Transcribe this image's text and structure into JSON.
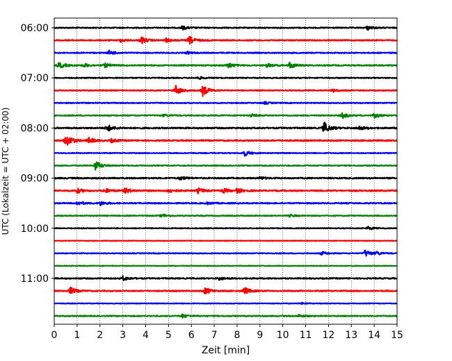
{
  "chart_data": {
    "type": "line",
    "title": "",
    "xlabel": "Zeit  [min]",
    "ylabel": "UTC (Lokalzeit = UTC + 02:00)",
    "xlim": [
      0,
      15
    ],
    "x_ticks": [
      "0",
      "1",
      "2",
      "3",
      "4",
      "5",
      "6",
      "7",
      "8",
      "9",
      "10",
      "11",
      "12",
      "13",
      "14",
      "15"
    ],
    "y_ticks": [
      "06:00",
      "07:00",
      "08:00",
      "09:00",
      "10:00",
      "11:00"
    ],
    "grid": "vertical-dotted",
    "trace_colors": [
      "#000000",
      "#ff0000",
      "#0000ff",
      "#008000"
    ],
    "traces": [
      {
        "start": "06:00",
        "color": "#000000",
        "noise": 0.22,
        "events": [
          [
            5.6,
            0.8
          ],
          [
            13.7,
            1.0
          ]
        ]
      },
      {
        "start": "06:15",
        "color": "#ff0000",
        "noise": 0.25,
        "events": [
          [
            2.9,
            0.7
          ],
          [
            3.8,
            1.6
          ],
          [
            5.9,
            1.8
          ],
          [
            4.9,
            0.8
          ]
        ]
      },
      {
        "start": "06:30",
        "color": "#0000ff",
        "noise": 0.22,
        "events": [
          [
            2.4,
            1.0
          ],
          [
            5.8,
            0.5
          ]
        ]
      },
      {
        "start": "06:45",
        "color": "#008000",
        "noise": 0.25,
        "events": [
          [
            0.2,
            1.4
          ],
          [
            1.3,
            0.8
          ],
          [
            2.2,
            0.9
          ],
          [
            7.6,
            1.2
          ],
          [
            9.3,
            0.8
          ],
          [
            10.3,
            1.4
          ]
        ]
      },
      {
        "start": "07:00",
        "color": "#000000",
        "noise": 0.2,
        "events": [
          [
            6.3,
            0.6
          ]
        ]
      },
      {
        "start": "07:15",
        "color": "#ff0000",
        "noise": 0.22,
        "events": [
          [
            5.3,
            2.2
          ],
          [
            6.5,
            2.4
          ],
          [
            12.2,
            0.7
          ]
        ]
      },
      {
        "start": "07:30",
        "color": "#0000ff",
        "noise": 0.2,
        "events": [
          [
            9.2,
            0.5
          ]
        ]
      },
      {
        "start": "07:45",
        "color": "#008000",
        "noise": 0.22,
        "events": [
          [
            4.8,
            0.6
          ],
          [
            8.6,
            0.7
          ],
          [
            12.6,
            1.2
          ],
          [
            14.0,
            1.1
          ]
        ]
      },
      {
        "start": "08:00",
        "color": "#000000",
        "noise": 0.3,
        "events": [
          [
            2.3,
            1.6
          ],
          [
            11.8,
            2.6
          ],
          [
            13.3,
            0.9
          ]
        ]
      },
      {
        "start": "08:15",
        "color": "#ff0000",
        "noise": 0.3,
        "events": [
          [
            0.5,
            3.2
          ],
          [
            1.5,
            1.2
          ],
          [
            2.5,
            0.7
          ]
        ]
      },
      {
        "start": "08:30",
        "color": "#0000ff",
        "noise": 0.18,
        "events": [
          [
            8.3,
            1.4
          ]
        ]
      },
      {
        "start": "08:45",
        "color": "#008000",
        "noise": 0.2,
        "events": [
          [
            1.8,
            2.2
          ]
        ]
      },
      {
        "start": "09:00",
        "color": "#000000",
        "noise": 0.28,
        "events": [
          [
            5.5,
            0.8
          ],
          [
            9.0,
            0.6
          ]
        ]
      },
      {
        "start": "09:15",
        "color": "#ff0000",
        "noise": 0.3,
        "events": [
          [
            1.0,
            1.0
          ],
          [
            2.2,
            1.0
          ],
          [
            3.1,
            1.2
          ],
          [
            5.0,
            0.9
          ],
          [
            6.3,
            1.1
          ],
          [
            7.4,
            0.9
          ],
          [
            8.0,
            0.9
          ]
        ]
      },
      {
        "start": "09:30",
        "color": "#0000ff",
        "noise": 0.25,
        "events": [
          [
            1.0,
            0.9
          ],
          [
            2.0,
            0.9
          ],
          [
            6.7,
            0.5
          ]
        ]
      },
      {
        "start": "09:45",
        "color": "#008000",
        "noise": 0.2,
        "events": [
          [
            4.7,
            0.8
          ],
          [
            10.3,
            0.5
          ]
        ]
      },
      {
        "start": "10:00",
        "color": "#000000",
        "noise": 0.18,
        "events": [
          [
            13.7,
            0.8
          ]
        ]
      },
      {
        "start": "10:15",
        "color": "#ff0000",
        "noise": 0.15,
        "events": []
      },
      {
        "start": "10:30",
        "color": "#0000ff",
        "noise": 0.18,
        "events": [
          [
            11.7,
            0.8
          ],
          [
            13.6,
            1.6
          ],
          [
            14.1,
            0.7
          ]
        ]
      },
      {
        "start": "10:45",
        "color": "#008000",
        "noise": 0.15,
        "events": []
      },
      {
        "start": "11:00",
        "color": "#000000",
        "noise": 0.25,
        "events": [
          [
            3.0,
            1.0
          ],
          [
            7.2,
            0.7
          ]
        ]
      },
      {
        "start": "11:15",
        "color": "#ff0000",
        "noise": 0.25,
        "events": [
          [
            0.7,
            1.6
          ],
          [
            6.6,
            1.6
          ],
          [
            8.3,
            1.6
          ]
        ]
      },
      {
        "start": "11:30",
        "color": "#0000ff",
        "noise": 0.15,
        "events": [
          [
            10.8,
            0.4
          ]
        ]
      },
      {
        "start": "11:45",
        "color": "#008000",
        "noise": 0.22,
        "events": [
          [
            5.6,
            0.8
          ],
          [
            10.7,
            0.5
          ]
        ]
      }
    ]
  }
}
